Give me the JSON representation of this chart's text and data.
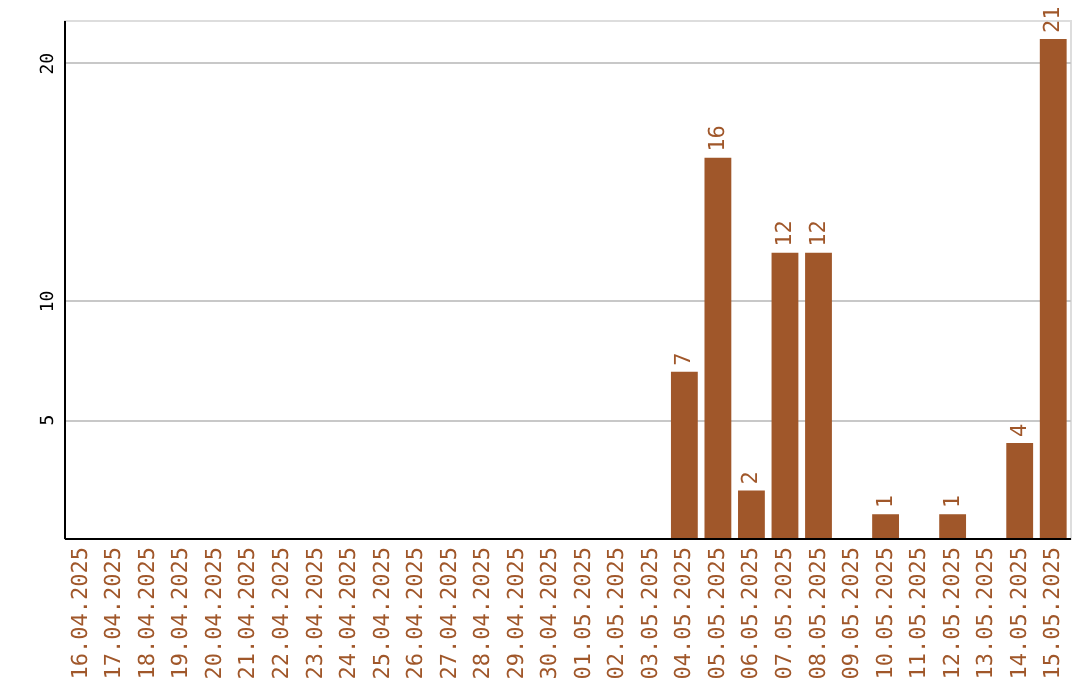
{
  "chart_data": {
    "type": "bar",
    "categories": [
      "16.04.2025",
      "17.04.2025",
      "18.04.2025",
      "19.04.2025",
      "20.04.2025",
      "21.04.2025",
      "22.04.2025",
      "23.04.2025",
      "24.04.2025",
      "25.04.2025",
      "26.04.2025",
      "27.04.2025",
      "28.04.2025",
      "29.04.2025",
      "30.04.2025",
      "01.05.2025",
      "02.05.2025",
      "03.05.2025",
      "04.05.2025",
      "05.05.2025",
      "06.05.2025",
      "07.05.2025",
      "08.05.2025",
      "09.05.2025",
      "10.05.2025",
      "11.05.2025",
      "12.05.2025",
      "13.05.2025",
      "14.05.2025",
      "15.05.2025"
    ],
    "values": [
      0,
      0,
      0,
      0,
      0,
      0,
      0,
      0,
      0,
      0,
      0,
      0,
      0,
      0,
      0,
      0,
      0,
      0,
      7,
      16,
      2,
      12,
      12,
      0,
      1,
      0,
      1,
      0,
      4,
      21
    ],
    "value_labels": [
      null,
      null,
      null,
      null,
      null,
      null,
      null,
      null,
      null,
      null,
      null,
      null,
      null,
      null,
      null,
      null,
      null,
      null,
      "7",
      "16",
      "2",
      "12",
      "12",
      null,
      "1",
      null,
      "1",
      null,
      "4",
      "21"
    ],
    "color": "#a0572a",
    "ylim": [
      0,
      21.8
    ],
    "yticks": [
      5,
      10,
      20
    ],
    "grid": "y"
  }
}
